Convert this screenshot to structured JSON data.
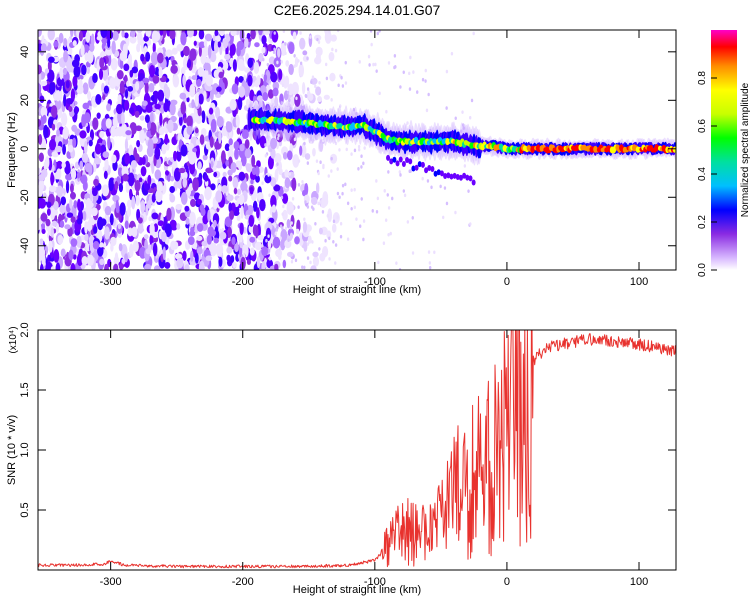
{
  "title": "C2E6.2025.294.14.01.G07",
  "chart_data": [
    {
      "type": "heatmap",
      "title": "C2E6.2025.294.14.01.G07",
      "xlabel": "Height of straight line (km)",
      "ylabel": "Frequency (Hz)",
      "xlim": [
        -355,
        128
      ],
      "ylim": [
        -50,
        49
      ],
      "xticks": [
        -300,
        -200,
        -100,
        0,
        100
      ],
      "yticks": [
        -40,
        -20,
        0,
        20,
        40
      ],
      "colorbar": {
        "label": "Normalized spectral amplitude",
        "range": [
          0,
          1
        ],
        "ticks": [
          0.0,
          0.2,
          0.4,
          0.6,
          0.8
        ],
        "colormap": [
          "#ffffff",
          "#d8b8ff",
          "#8a2be2",
          "#4b00ff",
          "#0000ff",
          "#00bfff",
          "#00e0a0",
          "#00ff00",
          "#c8ff00",
          "#ffff00",
          "#ff8c00",
          "#ff0000",
          "#ff00c8"
        ]
      },
      "ridge": {
        "x": [
          -195,
          -180,
          -160,
          -140,
          -120,
          -110,
          -100,
          -90,
          -80,
          -70,
          -60,
          -50,
          -40,
          -30,
          -20,
          -10,
          0,
          20,
          50,
          80,
          110,
          128
        ],
        "y": [
          12,
          12,
          11,
          10,
          9,
          10,
          7,
          4,
          3,
          3,
          3,
          3,
          3,
          2,
          1,
          1,
          0,
          0,
          0,
          0,
          0,
          0
        ]
      },
      "noise_region_x": [
        -355,
        -185
      ],
      "grid": false
    },
    {
      "type": "line",
      "xlabel": "Height of straight line (km)",
      "ylabel": "SNR (10 * v/v)",
      "y_multiplier": "(x10⁴)",
      "xlim": [
        -355,
        128
      ],
      "ylim": [
        0,
        2.0
      ],
      "xticks": [
        -300,
        -200,
        -100,
        0,
        100
      ],
      "yticks": [
        0.5,
        1.0,
        1.5,
        2.0
      ],
      "color": "#e8322e",
      "series": [
        {
          "x": [
            -355,
            -330,
            -305,
            -300,
            -290,
            -250,
            -200,
            -150,
            -120,
            -100,
            -90,
            -80,
            -70,
            -60,
            -50,
            -40,
            -30,
            -20,
            -10,
            0,
            5,
            10,
            20,
            30,
            40,
            50,
            60,
            70,
            80,
            90,
            100,
            110,
            120,
            128
          ],
          "y": [
            0.04,
            0.04,
            0.05,
            0.08,
            0.04,
            0.03,
            0.03,
            0.03,
            0.04,
            0.08,
            0.2,
            0.35,
            0.3,
            0.28,
            0.4,
            0.6,
            0.75,
            0.8,
            0.95,
            1.1,
            1.3,
            1.55,
            1.75,
            1.85,
            1.88,
            1.9,
            1.92,
            1.92,
            1.9,
            1.9,
            1.88,
            1.86,
            1.84,
            1.82
          ]
        }
      ],
      "grid": false
    }
  ]
}
